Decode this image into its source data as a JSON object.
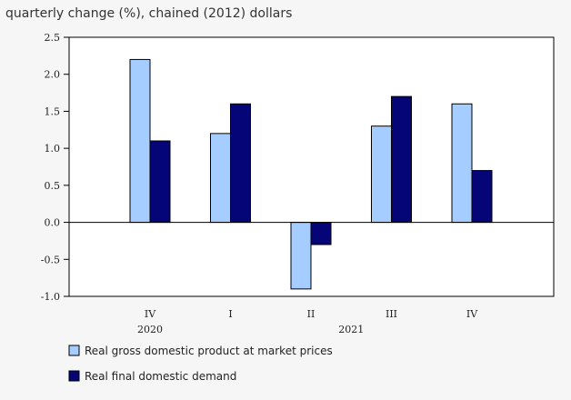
{
  "chart_data": {
    "type": "bar",
    "title": "quarterly change (%), chained (2012) dollars",
    "categories": [
      "IV",
      "I",
      "II",
      "III",
      "IV"
    ],
    "year_labels": [
      "2020",
      "2021"
    ],
    "series": [
      {
        "name": "Real gross domestic product at market prices",
        "color": "#a6cdff",
        "values": [
          2.2,
          1.2,
          -0.9,
          1.3,
          1.6
        ]
      },
      {
        "name": "Real final domestic demand",
        "color": "#050577",
        "values": [
          1.1,
          1.6,
          -0.3,
          1.7,
          0.7
        ]
      }
    ],
    "yticks": [
      "2.5",
      "2.0",
      "1.5",
      "1.0",
      "0.5",
      "0.0",
      "-0.5",
      "-1.0"
    ],
    "ylim": [
      -1.0,
      2.5
    ],
    "grid": false,
    "legend_position": "bottom-left"
  }
}
